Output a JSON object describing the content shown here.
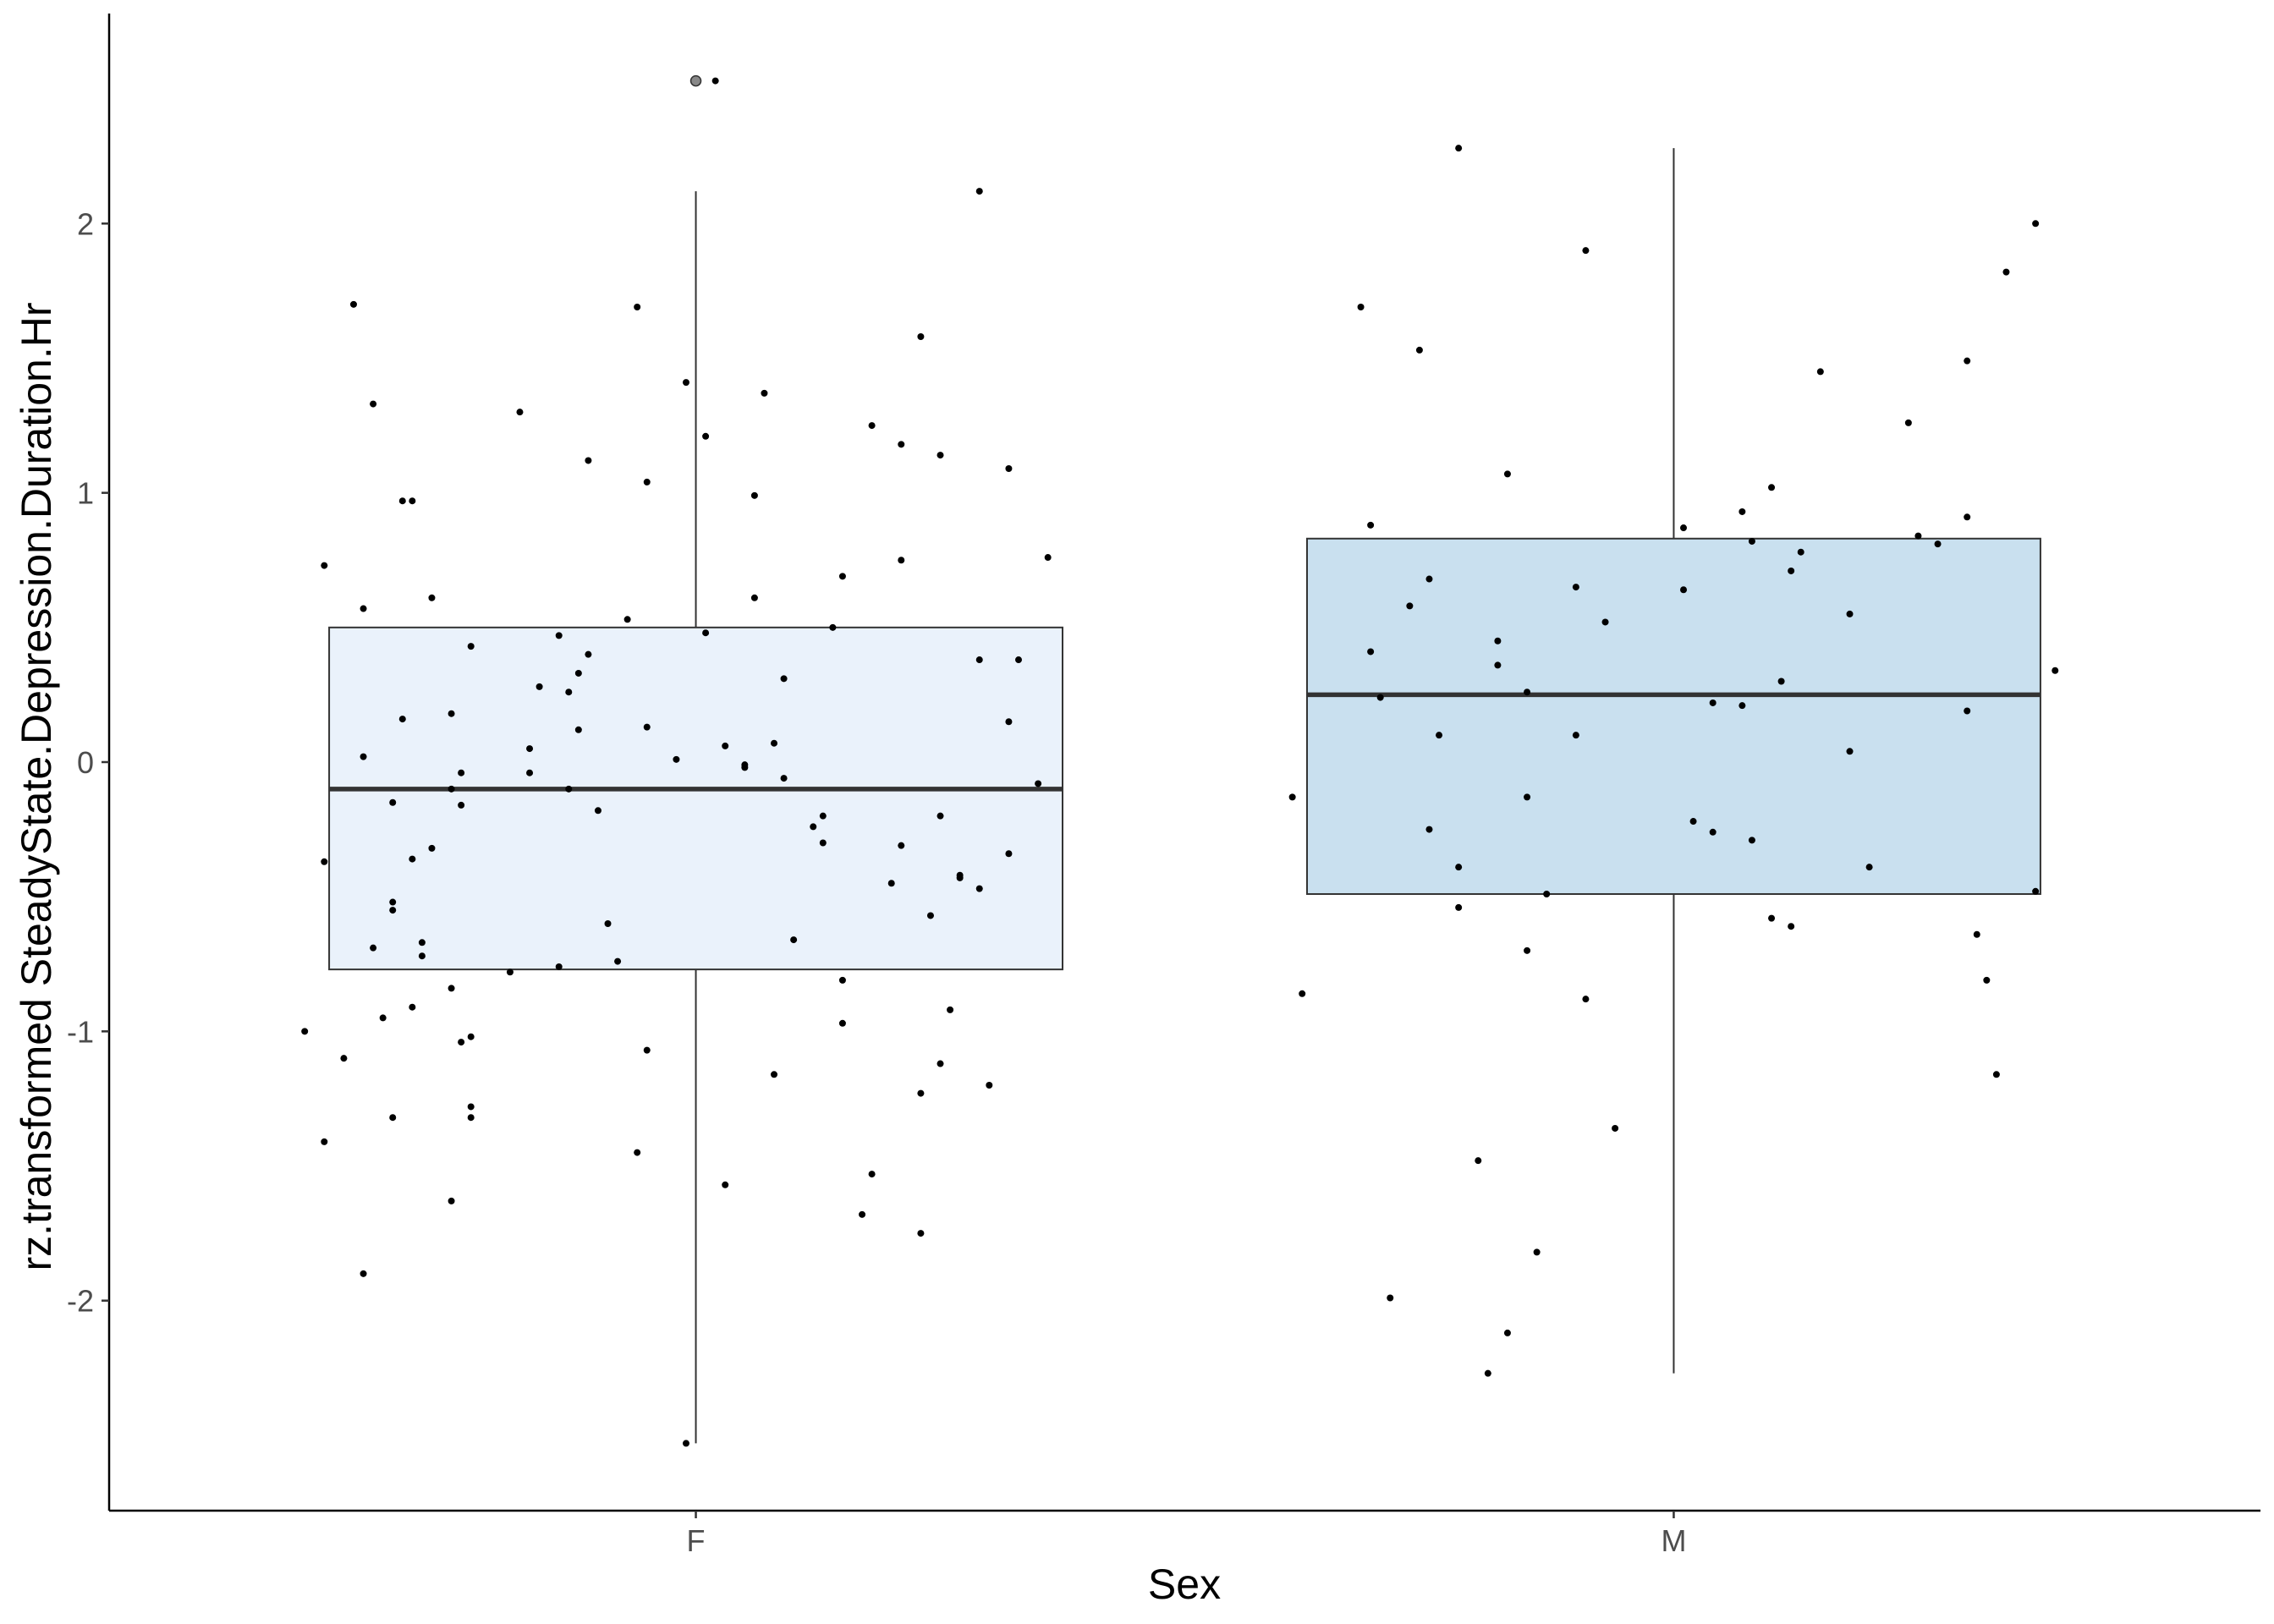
{
  "chart_data": {
    "type": "box",
    "title": "",
    "xlabel": "Sex",
    "ylabel": "rz.transformed SteadyState.Depression.Duration.Hr",
    "categories": [
      "F",
      "M"
    ],
    "ylim": [
      -2.78,
      2.78
    ],
    "yticks": [
      -2,
      -1,
      0,
      1,
      2
    ],
    "ytick_labels": [
      "-2",
      "-1",
      "0",
      "1",
      "2"
    ],
    "grid": false,
    "legend": "none",
    "box_colors": [
      "#eaf2fb",
      "#c9e0ef"
    ],
    "boxes": [
      {
        "category": "F",
        "q1": -0.77,
        "median": -0.1,
        "q3": 0.5,
        "whisker_low": -2.53,
        "whisker_high": 2.12,
        "outliers": [
          2.53
        ]
      },
      {
        "category": "M",
        "q1": -0.49,
        "median": 0.25,
        "q3": 0.83,
        "whisker_low": -2.27,
        "whisker_high": 2.28,
        "outliers": []
      }
    ],
    "points": [
      {
        "category": "F",
        "x": 0.65,
        "y": 1.7
      },
      {
        "category": "F",
        "x": 0.67,
        "y": 1.33
      },
      {
        "category": "F",
        "x": 0.62,
        "y": 0.73
      },
      {
        "category": "F",
        "x": 0.66,
        "y": 0.57
      },
      {
        "category": "F",
        "x": 0.7,
        "y": 0.97
      },
      {
        "category": "F",
        "x": 0.71,
        "y": 0.97
      },
      {
        "category": "F",
        "x": 0.73,
        "y": 0.61
      },
      {
        "category": "F",
        "x": 0.7,
        "y": 0.16
      },
      {
        "category": "F",
        "x": 0.66,
        "y": 0.02
      },
      {
        "category": "F",
        "x": 0.69,
        "y": -0.15
      },
      {
        "category": "F",
        "x": 0.62,
        "y": -0.37
      },
      {
        "category": "F",
        "x": 0.69,
        "y": -0.55
      },
      {
        "category": "F",
        "x": 0.69,
        "y": -0.52
      },
      {
        "category": "F",
        "x": 0.67,
        "y": -0.69
      },
      {
        "category": "F",
        "x": 0.71,
        "y": -0.36
      },
      {
        "category": "F",
        "x": 0.72,
        "y": -0.72
      },
      {
        "category": "F",
        "x": 0.72,
        "y": -0.67
      },
      {
        "category": "F",
        "x": 0.73,
        "y": -0.32
      },
      {
        "category": "F",
        "x": 0.64,
        "y": -1.1
      },
      {
        "category": "F",
        "x": 0.6,
        "y": -1.0
      },
      {
        "category": "F",
        "x": 0.68,
        "y": -0.95
      },
      {
        "category": "F",
        "x": 0.71,
        "y": -0.91
      },
      {
        "category": "F",
        "x": 0.69,
        "y": -1.32
      },
      {
        "category": "F",
        "x": 0.62,
        "y": -1.41
      },
      {
        "category": "F",
        "x": 0.66,
        "y": -1.9
      },
      {
        "category": "F",
        "x": 0.75,
        "y": -0.1
      },
      {
        "category": "F",
        "x": 0.75,
        "y": 0.18
      },
      {
        "category": "F",
        "x": 0.76,
        "y": -0.16
      },
      {
        "category": "F",
        "x": 0.76,
        "y": -0.04
      },
      {
        "category": "F",
        "x": 0.77,
        "y": 0.43
      },
      {
        "category": "F",
        "x": 0.75,
        "y": -0.84
      },
      {
        "category": "F",
        "x": 0.76,
        "y": -1.04
      },
      {
        "category": "F",
        "x": 0.77,
        "y": -1.02
      },
      {
        "category": "F",
        "x": 0.77,
        "y": -1.28
      },
      {
        "category": "F",
        "x": 0.77,
        "y": -1.32
      },
      {
        "category": "F",
        "x": 0.75,
        "y": -1.63
      },
      {
        "category": "F",
        "x": 0.82,
        "y": 1.3
      },
      {
        "category": "F",
        "x": 0.83,
        "y": 0.05
      },
      {
        "category": "F",
        "x": 0.83,
        "y": -0.04
      },
      {
        "category": "F",
        "x": 0.84,
        "y": 0.28
      },
      {
        "category": "F",
        "x": 0.81,
        "y": -0.78
      },
      {
        "category": "F",
        "x": 0.86,
        "y": 0.47
      },
      {
        "category": "F",
        "x": 0.86,
        "y": -0.76
      },
      {
        "category": "F",
        "x": 0.87,
        "y": 0.26
      },
      {
        "category": "F",
        "x": 0.87,
        "y": -0.1
      },
      {
        "category": "F",
        "x": 0.88,
        "y": 0.12
      },
      {
        "category": "F",
        "x": 0.88,
        "y": 0.33
      },
      {
        "category": "F",
        "x": 0.89,
        "y": 0.4
      },
      {
        "category": "F",
        "x": 0.89,
        "y": 1.12
      },
      {
        "category": "F",
        "x": 0.9,
        "y": -0.18
      },
      {
        "category": "F",
        "x": 0.91,
        "y": -0.6
      },
      {
        "category": "F",
        "x": 0.92,
        "y": -0.74
      },
      {
        "category": "F",
        "x": 0.93,
        "y": 0.53
      },
      {
        "category": "F",
        "x": 0.94,
        "y": 1.69
      },
      {
        "category": "F",
        "x": 0.94,
        "y": -1.45
      },
      {
        "category": "F",
        "x": 0.95,
        "y": 1.04
      },
      {
        "category": "F",
        "x": 0.95,
        "y": 0.13
      },
      {
        "category": "F",
        "x": 0.95,
        "y": -1.07
      },
      {
        "category": "F",
        "x": 0.98,
        "y": 0.01
      },
      {
        "category": "F",
        "x": 0.99,
        "y": 1.41
      },
      {
        "category": "F",
        "x": 0.99,
        "y": -2.53
      },
      {
        "category": "F",
        "x": 1.01,
        "y": 1.21
      },
      {
        "category": "F",
        "x": 1.01,
        "y": 0.48
      },
      {
        "category": "F",
        "x": 1.02,
        "y": 2.53
      },
      {
        "category": "F",
        "x": 1.03,
        "y": 0.06
      },
      {
        "category": "F",
        "x": 1.03,
        "y": -1.57
      },
      {
        "category": "F",
        "x": 1.05,
        "y": -0.02
      },
      {
        "category": "F",
        "x": 1.05,
        "y": -0.01
      },
      {
        "category": "F",
        "x": 1.06,
        "y": 0.99
      },
      {
        "category": "F",
        "x": 1.06,
        "y": 0.61
      },
      {
        "category": "F",
        "x": 1.07,
        "y": 1.37
      },
      {
        "category": "F",
        "x": 1.08,
        "y": 0.07
      },
      {
        "category": "F",
        "x": 1.08,
        "y": -1.16
      },
      {
        "category": "F",
        "x": 1.09,
        "y": -0.06
      },
      {
        "category": "F",
        "x": 1.09,
        "y": 0.31
      },
      {
        "category": "F",
        "x": 1.1,
        "y": -0.66
      },
      {
        "category": "F",
        "x": 1.12,
        "y": -0.24
      },
      {
        "category": "F",
        "x": 1.13,
        "y": -0.2
      },
      {
        "category": "F",
        "x": 1.13,
        "y": -0.3
      },
      {
        "category": "F",
        "x": 1.14,
        "y": 0.5
      },
      {
        "category": "F",
        "x": 1.15,
        "y": 0.69
      },
      {
        "category": "F",
        "x": 1.15,
        "y": -0.81
      },
      {
        "category": "F",
        "x": 1.15,
        "y": -0.97
      },
      {
        "category": "F",
        "x": 1.17,
        "y": -1.68
      },
      {
        "category": "F",
        "x": 1.18,
        "y": -1.53
      },
      {
        "category": "F",
        "x": 1.18,
        "y": 1.25
      },
      {
        "category": "F",
        "x": 1.2,
        "y": -0.45
      },
      {
        "category": "F",
        "x": 1.21,
        "y": 1.18
      },
      {
        "category": "F",
        "x": 1.21,
        "y": 0.75
      },
      {
        "category": "F",
        "x": 1.21,
        "y": -0.31
      },
      {
        "category": "F",
        "x": 1.23,
        "y": 1.58
      },
      {
        "category": "F",
        "x": 1.23,
        "y": -1.23
      },
      {
        "category": "F",
        "x": 1.23,
        "y": -1.75
      },
      {
        "category": "F",
        "x": 1.24,
        "y": -0.57
      },
      {
        "category": "F",
        "x": 1.25,
        "y": 1.14
      },
      {
        "category": "F",
        "x": 1.25,
        "y": -0.2
      },
      {
        "category": "F",
        "x": 1.25,
        "y": -1.12
      },
      {
        "category": "F",
        "x": 1.26,
        "y": -0.92
      },
      {
        "category": "F",
        "x": 1.27,
        "y": -0.43
      },
      {
        "category": "F",
        "x": 1.27,
        "y": -0.42
      },
      {
        "category": "F",
        "x": 1.29,
        "y": 2.12
      },
      {
        "category": "F",
        "x": 1.29,
        "y": 0.38
      },
      {
        "category": "F",
        "x": 1.29,
        "y": -0.47
      },
      {
        "category": "F",
        "x": 1.3,
        "y": -1.2
      },
      {
        "category": "F",
        "x": 1.32,
        "y": 0.15
      },
      {
        "category": "F",
        "x": 1.32,
        "y": -0.34
      },
      {
        "category": "F",
        "x": 1.32,
        "y": 1.09
      },
      {
        "category": "F",
        "x": 1.33,
        "y": 0.38
      },
      {
        "category": "F",
        "x": 1.35,
        "y": -0.08
      },
      {
        "category": "F",
        "x": 1.36,
        "y": 0.76
      },
      {
        "category": "M",
        "x": 1.61,
        "y": -0.13
      },
      {
        "category": "M",
        "x": 1.62,
        "y": -0.86
      },
      {
        "category": "M",
        "x": 1.68,
        "y": 1.69
      },
      {
        "category": "M",
        "x": 1.69,
        "y": 0.88
      },
      {
        "category": "M",
        "x": 1.69,
        "y": 0.41
      },
      {
        "category": "M",
        "x": 1.7,
        "y": 0.24
      },
      {
        "category": "M",
        "x": 1.71,
        "y": -1.99
      },
      {
        "category": "M",
        "x": 1.73,
        "y": 0.58
      },
      {
        "category": "M",
        "x": 1.74,
        "y": 1.53
      },
      {
        "category": "M",
        "x": 1.75,
        "y": 0.68
      },
      {
        "category": "M",
        "x": 1.75,
        "y": -0.25
      },
      {
        "category": "M",
        "x": 1.76,
        "y": 0.1
      },
      {
        "category": "M",
        "x": 1.78,
        "y": 2.28
      },
      {
        "category": "M",
        "x": 1.78,
        "y": -0.39
      },
      {
        "category": "M",
        "x": 1.78,
        "y": -0.54
      },
      {
        "category": "M",
        "x": 1.8,
        "y": -1.48
      },
      {
        "category": "M",
        "x": 1.81,
        "y": -2.27
      },
      {
        "category": "M",
        "x": 1.82,
        "y": 0.36
      },
      {
        "category": "M",
        "x": 1.82,
        "y": 0.45
      },
      {
        "category": "M",
        "x": 1.83,
        "y": -2.12
      },
      {
        "category": "M",
        "x": 1.83,
        "y": 1.07
      },
      {
        "category": "M",
        "x": 1.85,
        "y": -0.13
      },
      {
        "category": "M",
        "x": 1.85,
        "y": -0.7
      },
      {
        "category": "M",
        "x": 1.85,
        "y": 0.26
      },
      {
        "category": "M",
        "x": 1.86,
        "y": -1.82
      },
      {
        "category": "M",
        "x": 1.87,
        "y": -0.49
      },
      {
        "category": "M",
        "x": 1.9,
        "y": 0.65
      },
      {
        "category": "M",
        "x": 1.9,
        "y": 0.1
      },
      {
        "category": "M",
        "x": 1.91,
        "y": -0.88
      },
      {
        "category": "M",
        "x": 1.91,
        "y": 1.9
      },
      {
        "category": "M",
        "x": 1.93,
        "y": 0.52
      },
      {
        "category": "M",
        "x": 1.94,
        "y": -1.36
      },
      {
        "category": "M",
        "x": 2.01,
        "y": 0.87
      },
      {
        "category": "M",
        "x": 2.01,
        "y": 0.64
      },
      {
        "category": "M",
        "x": 2.02,
        "y": -0.22
      },
      {
        "category": "M",
        "x": 2.04,
        "y": -0.26
      },
      {
        "category": "M",
        "x": 2.04,
        "y": 0.22
      },
      {
        "category": "M",
        "x": 2.07,
        "y": 0.93
      },
      {
        "category": "M",
        "x": 2.07,
        "y": 0.21
      },
      {
        "category": "M",
        "x": 2.08,
        "y": 0.82
      },
      {
        "category": "M",
        "x": 2.08,
        "y": -0.29
      },
      {
        "category": "M",
        "x": 2.1,
        "y": 1.02
      },
      {
        "category": "M",
        "x": 2.1,
        "y": -0.58
      },
      {
        "category": "M",
        "x": 2.11,
        "y": 0.3
      },
      {
        "category": "M",
        "x": 2.12,
        "y": 0.71
      },
      {
        "category": "M",
        "x": 2.12,
        "y": -0.61
      },
      {
        "category": "M",
        "x": 2.13,
        "y": 0.78
      },
      {
        "category": "M",
        "x": 2.15,
        "y": 1.45
      },
      {
        "category": "M",
        "x": 2.18,
        "y": 0.55
      },
      {
        "category": "M",
        "x": 2.18,
        "y": 0.04
      },
      {
        "category": "M",
        "x": 2.2,
        "y": -0.39
      },
      {
        "category": "M",
        "x": 2.24,
        "y": 1.26
      },
      {
        "category": "M",
        "x": 2.25,
        "y": 0.84
      },
      {
        "category": "M",
        "x": 2.27,
        "y": 0.81
      },
      {
        "category": "M",
        "x": 2.3,
        "y": 0.91
      },
      {
        "category": "M",
        "x": 2.3,
        "y": 1.49
      },
      {
        "category": "M",
        "x": 2.3,
        "y": 0.19
      },
      {
        "category": "M",
        "x": 2.31,
        "y": -0.64
      },
      {
        "category": "M",
        "x": 2.32,
        "y": -0.81
      },
      {
        "category": "M",
        "x": 2.33,
        "y": -1.16
      },
      {
        "category": "M",
        "x": 2.34,
        "y": 1.82
      },
      {
        "category": "M",
        "x": 2.37,
        "y": 2.0
      },
      {
        "category": "M",
        "x": 2.37,
        "y": -0.48
      },
      {
        "category": "M",
        "x": 2.39,
        "y": 0.34
      }
    ]
  }
}
